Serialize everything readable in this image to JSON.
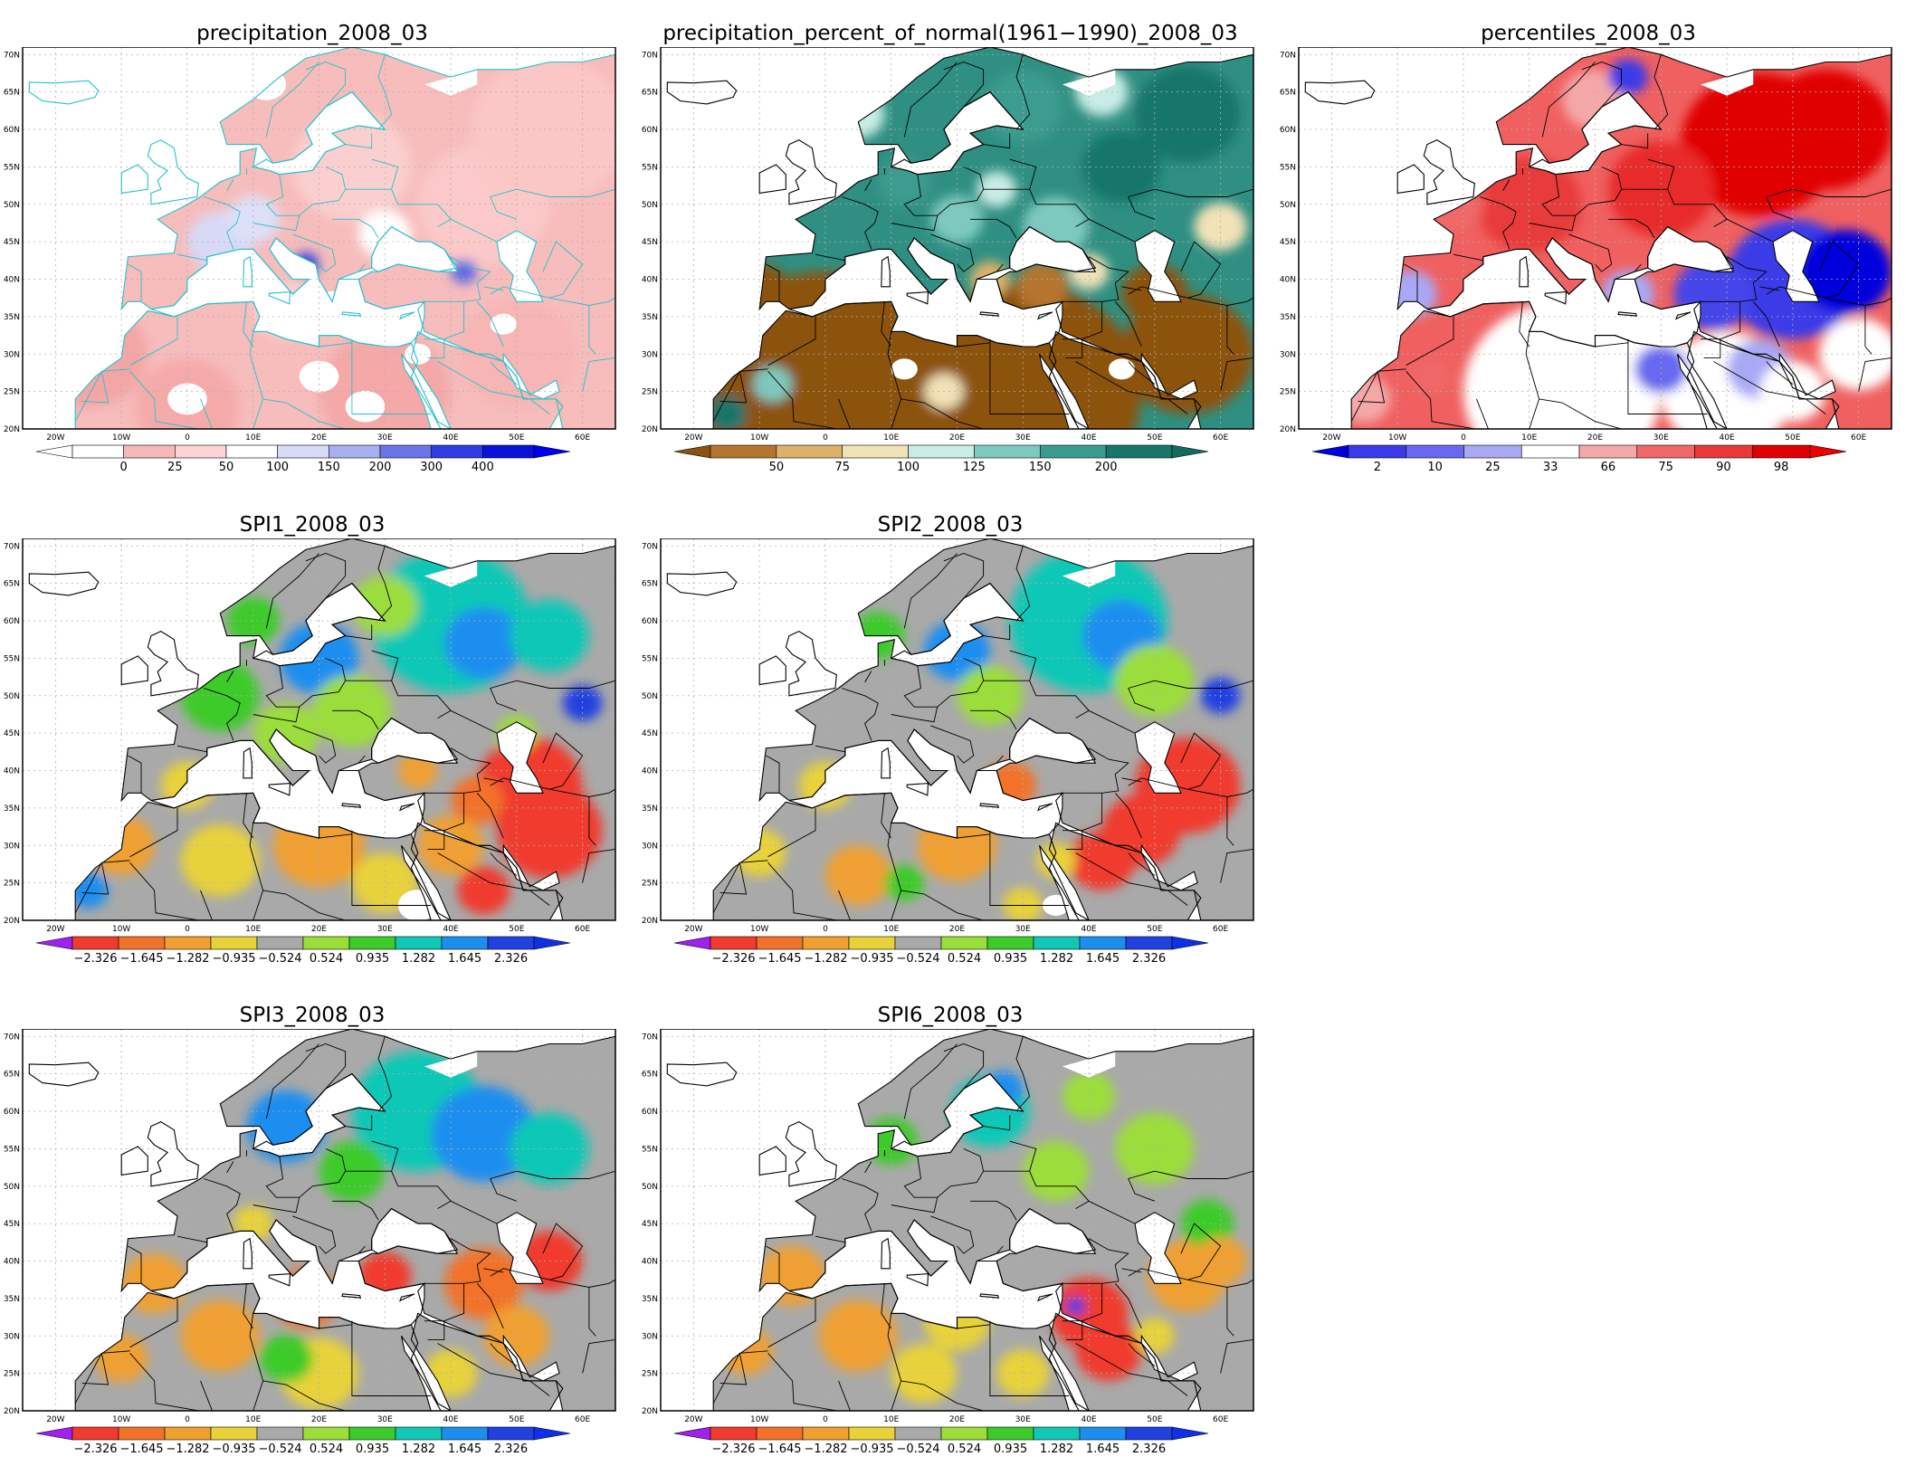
{
  "lon_labels": [
    "20W",
    "10W",
    "0",
    "10E",
    "20E",
    "30E",
    "40E",
    "50E",
    "60E"
  ],
  "lat_labels": [
    "20N",
    "25N",
    "30N",
    "35N",
    "40N",
    "45N",
    "50N",
    "55N",
    "60N",
    "65N",
    "70N"
  ],
  "colors": {
    "land_outline": "#000000",
    "coast_outline_precip": "#27c1c9",
    "missing": "#ffffff",
    "spi_gray": "#a9a9a9"
  },
  "panels": [
    {
      "title": "precipitation_2008_03",
      "theme": "precip",
      "colorbar": {
        "labels": [
          "0",
          "25",
          "50",
          "100",
          "150",
          "200",
          "300",
          "400"
        ],
        "colors": [
          "#ffffff",
          "#f7b8b8",
          "#fbd5d5",
          "#ffffff",
          "#d8dbf8",
          "#a9b0f0",
          "#6b75e8",
          "#2f3ce0",
          "#0a12d8"
        ],
        "left_arrow": "#ffffff",
        "right_arrow": "#0000ee"
      }
    },
    {
      "title": "precipitation_percent_of_normal(1961−1990)_2008_03",
      "theme": "pct",
      "colorbar": {
        "labels": [
          "50",
          "75",
          "100",
          "125",
          "150",
          "200"
        ],
        "colors": [
          "#b5752d",
          "#dcb26b",
          "#f2e2b8",
          "#c9ece6",
          "#7ec9be",
          "#3a9c8f",
          "#16766a"
        ],
        "left_arrow": "#8c5310",
        "right_arrow": "#136b5e"
      }
    },
    {
      "title": "percentiles_2008_03",
      "theme": "perc",
      "colorbar": {
        "labels": [
          "2",
          "10",
          "25",
          "33",
          "66",
          "75",
          "90",
          "98"
        ],
        "colors": [
          "#3a3ae8",
          "#6868f0",
          "#a8a8f5",
          "#ffffff",
          "#f5a8a8",
          "#f06868",
          "#e83a3a",
          "#e00000"
        ],
        "left_arrow": "#0000dd",
        "right_arrow": "#ee0000"
      }
    },
    {
      "title": "SPI1_2008_03",
      "theme": "spi1",
      "colorbar": {
        "labels": [
          "−2.326",
          "−1.645",
          "−1.282",
          "−0.935",
          "−0.524",
          "0.524",
          "0.935",
          "1.282",
          "1.645",
          "2.326"
        ],
        "colors": [
          "#f03b2e",
          "#f2722a",
          "#f0a030",
          "#e8d23a",
          "#a9a9a9",
          "#9bde3a",
          "#3ccb2a",
          "#11c8b6",
          "#1b8ef0",
          "#2040e0"
        ],
        "left_arrow": "#a020f0",
        "right_arrow": "#1030e8"
      }
    },
    {
      "title": "SPI2_2008_03",
      "theme": "spi2",
      "colorbar": {
        "labels": [
          "−2.326",
          "−1.645",
          "−1.282",
          "−0.935",
          "−0.524",
          "0.524",
          "0.935",
          "1.282",
          "1.645",
          "2.326"
        ],
        "colors": [
          "#f03b2e",
          "#f2722a",
          "#f0a030",
          "#e8d23a",
          "#a9a9a9",
          "#9bde3a",
          "#3ccb2a",
          "#11c8b6",
          "#1b8ef0",
          "#2040e0"
        ],
        "left_arrow": "#a020f0",
        "right_arrow": "#1030e8"
      }
    },
    {
      "title": "SPI3_2008_03",
      "theme": "spi3",
      "colorbar": {
        "labels": [
          "−2.326",
          "−1.645",
          "−1.282",
          "−0.935",
          "−0.524",
          "0.524",
          "0.935",
          "1.282",
          "1.645",
          "2.326"
        ],
        "colors": [
          "#f03b2e",
          "#f2722a",
          "#f0a030",
          "#e8d23a",
          "#a9a9a9",
          "#9bde3a",
          "#3ccb2a",
          "#11c8b6",
          "#1b8ef0",
          "#2040e0"
        ],
        "left_arrow": "#a020f0",
        "right_arrow": "#1030e8"
      }
    },
    {
      "title": "SPI6_2008_03",
      "theme": "spi6",
      "colorbar": {
        "labels": [
          "−2.326",
          "−1.645",
          "−1.282",
          "−0.935",
          "−0.524",
          "0.524",
          "0.935",
          "1.282",
          "1.645",
          "2.326"
        ],
        "colors": [
          "#f03b2e",
          "#f2722a",
          "#f0a030",
          "#e8d23a",
          "#a9a9a9",
          "#9bde3a",
          "#3ccb2a",
          "#11c8b6",
          "#1b8ef0",
          "#2040e0"
        ],
        "left_arrow": "#a020f0",
        "right_arrow": "#1030e8"
      }
    }
  ]
}
